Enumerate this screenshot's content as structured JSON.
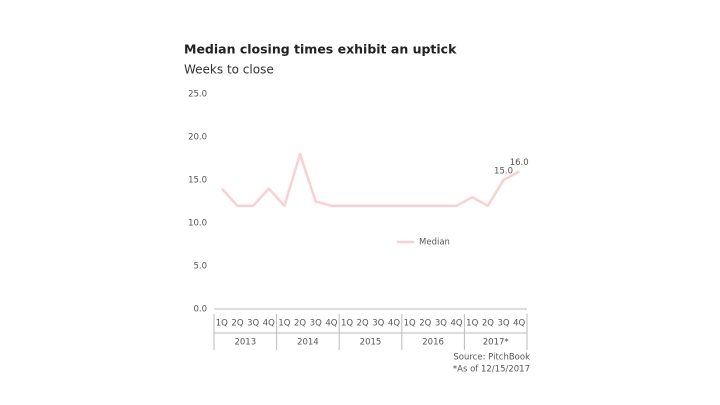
{
  "chart_data": {
    "type": "line",
    "title": "Median closing times exhibit an uptick",
    "subtitle": "Weeks to close",
    "category_groups": [
      {
        "name": "2013",
        "categories": [
          "1Q",
          "2Q",
          "3Q",
          "4Q"
        ]
      },
      {
        "name": "2014",
        "categories": [
          "1Q",
          "2Q",
          "3Q",
          "4Q"
        ]
      },
      {
        "name": "2015",
        "categories": [
          "1Q",
          "2Q",
          "3Q",
          "4Q"
        ]
      },
      {
        "name": "2016",
        "categories": [
          "1Q",
          "2Q",
          "3Q",
          "4Q"
        ]
      },
      {
        "name": "2017*",
        "categories": [
          "1Q",
          "2Q",
          "3Q",
          "4Q"
        ]
      }
    ],
    "series": [
      {
        "name": "Median",
        "color": "#fcd0d2",
        "values": [
          14,
          12,
          12,
          14,
          12,
          18,
          12.5,
          12,
          12,
          12,
          12,
          12,
          12,
          12,
          12,
          12,
          13,
          12,
          15,
          16
        ],
        "value_labels": [
          null,
          null,
          null,
          null,
          null,
          null,
          null,
          null,
          null,
          null,
          null,
          null,
          null,
          null,
          null,
          null,
          null,
          null,
          "15.0",
          "16.0"
        ]
      }
    ],
    "ylim": [
      0,
      25
    ],
    "yticks": [
      {
        "value": 0,
        "label": "0.0"
      },
      {
        "value": 5,
        "label": "5.0"
      },
      {
        "value": 10,
        "label": "10.0"
      },
      {
        "value": 15,
        "label": "15.0"
      },
      {
        "value": 20,
        "label": "20.0"
      },
      {
        "value": 25,
        "label": "25.0"
      }
    ],
    "notes": [
      "Source: PitchBook",
      "*As of 12/15/2017"
    ]
  }
}
